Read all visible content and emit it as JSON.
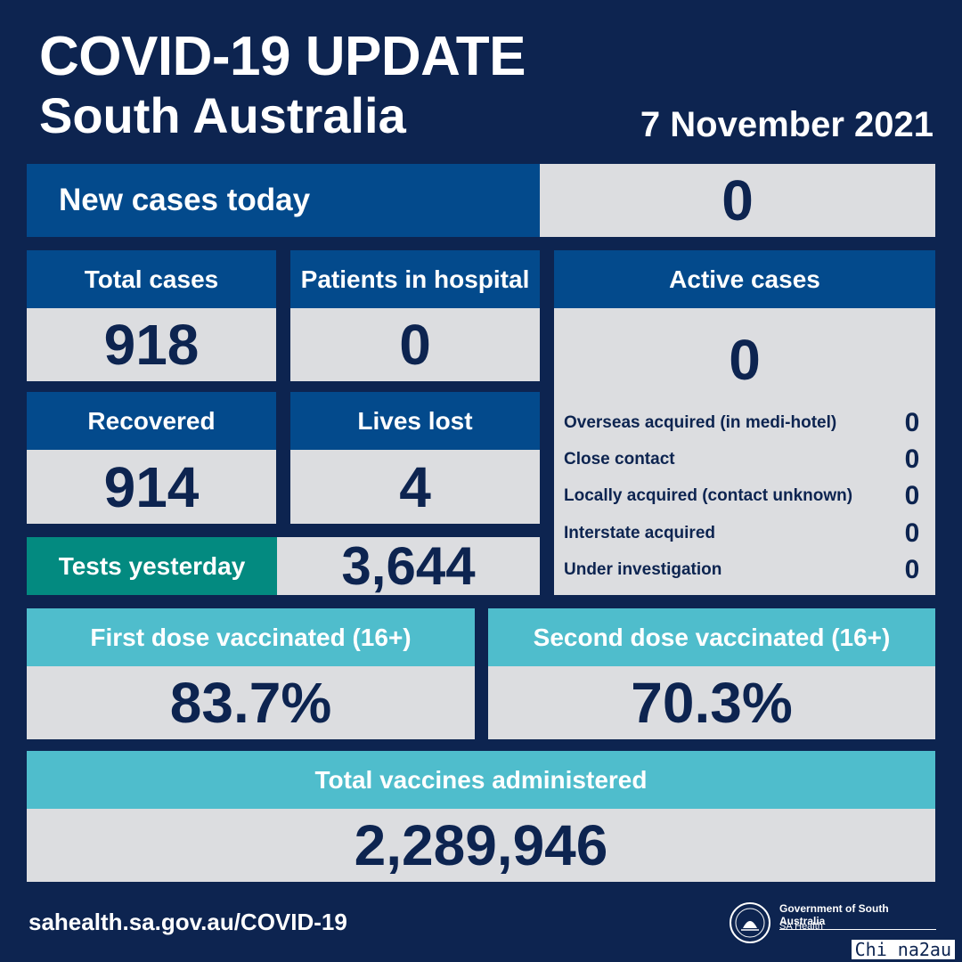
{
  "header": {
    "title": "COVID-19 UPDATE",
    "subtitle": "South Australia",
    "date": "7 November 2021"
  },
  "new_cases": {
    "label": "New cases today",
    "value": "0"
  },
  "total_cases": {
    "label": "Total cases",
    "value": "918"
  },
  "patients_in_hospital": {
    "label": "Patients in hospital",
    "value": "0"
  },
  "recovered": {
    "label": "Recovered",
    "value": "914"
  },
  "lives_lost": {
    "label": "Lives lost",
    "value": "4"
  },
  "tests_yesterday": {
    "label": "Tests yesterday",
    "value": "3,644"
  },
  "active_cases": {
    "label": "Active cases",
    "value": "0",
    "breakdown": [
      {
        "label": "Overseas acquired (in medi-hotel)",
        "value": "0"
      },
      {
        "label": "Close contact",
        "value": "0"
      },
      {
        "label": "Locally acquired (contact unknown)",
        "value": "0"
      },
      {
        "label": "Interstate acquired",
        "value": "0"
      },
      {
        "label": "Under investigation",
        "value": "0"
      }
    ]
  },
  "first_dose": {
    "label": "First dose vaccinated (16+)",
    "value": "83.7%"
  },
  "second_dose": {
    "label": "Second dose vaccinated (16+)",
    "value": "70.3%"
  },
  "total_vaccines": {
    "label": "Total vaccines administered",
    "value": "2,289,946"
  },
  "footer": {
    "url": "sahealth.sa.gov.au/COVID-19",
    "org": "Government of South Australia",
    "dept": "SA Health",
    "crest_icon": "south-australia-crest-icon",
    "watermark": "Chi na2au"
  },
  "colors": {
    "background": "#0d2450",
    "dark_header": "#034a8c",
    "light_header": "#4fbdcc",
    "teal_header": "#038a80",
    "value_bg": "#dcdde0"
  }
}
